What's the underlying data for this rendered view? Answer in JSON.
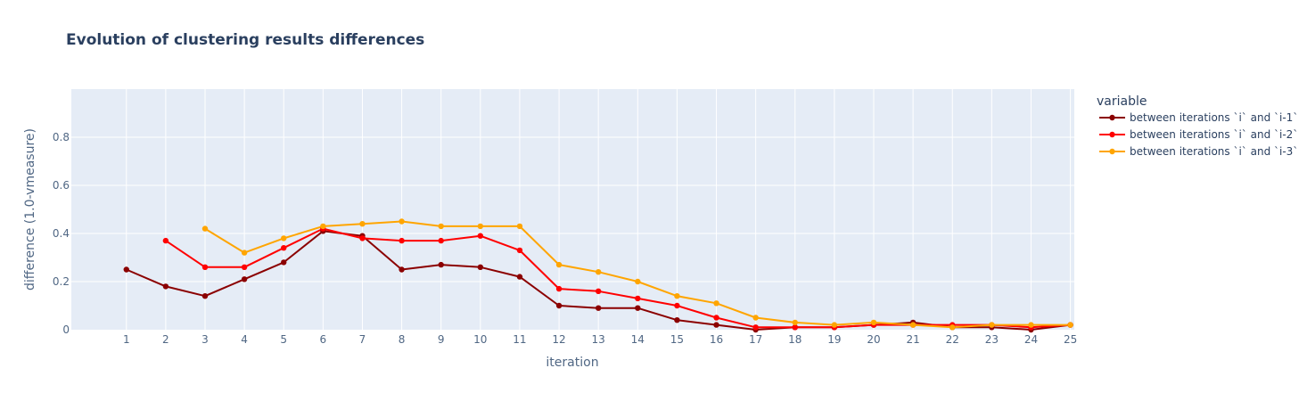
{
  "chart_data": {
    "type": "line",
    "title": "Evolution of clustering results differences",
    "xlabel": "iteration",
    "ylabel": "difference (1.0-vmeasure)",
    "xlim": [
      -0.4,
      25.1
    ],
    "ylim": [
      0,
      1.0
    ],
    "x_ticks": [
      1,
      2,
      3,
      4,
      5,
      6,
      7,
      8,
      9,
      10,
      11,
      12,
      13,
      14,
      15,
      16,
      17,
      18,
      19,
      20,
      21,
      22,
      23,
      24,
      25
    ],
    "y_ticks": [
      0,
      0.2,
      0.4,
      0.6,
      0.8
    ],
    "y_tick_labels": [
      "0",
      "0.2",
      "0.4",
      "0.6",
      "0.8"
    ],
    "grid": true,
    "legend_title": "variable",
    "legend_position": "right",
    "series": [
      {
        "name": "between iterations `i` and `i-1`",
        "color": "#8b0000",
        "x": [
          1,
          2,
          3,
          4,
          5,
          6,
          7,
          8,
          9,
          10,
          11,
          12,
          13,
          14,
          15,
          16,
          17,
          18,
          19,
          20,
          21,
          22,
          23,
          24,
          25
        ],
        "y": [
          0.25,
          0.18,
          0.14,
          0.21,
          0.28,
          0.41,
          0.39,
          0.25,
          0.27,
          0.26,
          0.22,
          0.1,
          0.09,
          0.09,
          0.04,
          0.02,
          0.0,
          0.01,
          0.01,
          0.02,
          0.03,
          0.01,
          0.01,
          0.0,
          0.02
        ]
      },
      {
        "name": "between iterations `i` and `i-2`",
        "color": "#ff0000",
        "x": [
          2,
          3,
          4,
          5,
          6,
          7,
          8,
          9,
          10,
          11,
          12,
          13,
          14,
          15,
          16,
          17,
          18,
          19,
          20,
          21,
          22,
          23,
          24,
          25
        ],
        "y": [
          0.37,
          0.26,
          0.26,
          0.34,
          0.42,
          0.38,
          0.37,
          0.37,
          0.39,
          0.33,
          0.17,
          0.16,
          0.13,
          0.1,
          0.05,
          0.01,
          0.01,
          0.01,
          0.02,
          0.02,
          0.02,
          0.02,
          0.01,
          0.02
        ]
      },
      {
        "name": "between iterations `i` and `i-3`",
        "color": "#ffa500",
        "x": [
          3,
          4,
          5,
          6,
          7,
          8,
          9,
          10,
          11,
          12,
          13,
          14,
          15,
          16,
          17,
          18,
          19,
          20,
          21,
          22,
          23,
          24,
          25
        ],
        "y": [
          0.42,
          0.32,
          0.38,
          0.43,
          0.44,
          0.45,
          0.43,
          0.43,
          0.43,
          0.27,
          0.24,
          0.2,
          0.14,
          0.11,
          0.05,
          0.03,
          0.02,
          0.03,
          0.02,
          0.01,
          0.02,
          0.02,
          0.02
        ]
      }
    ]
  }
}
